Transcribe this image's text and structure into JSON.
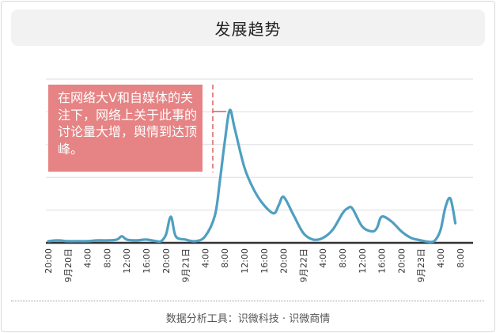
{
  "header": {
    "title": "发展趋势"
  },
  "annotation": {
    "text": "在网络大V和自媒体的关注下，网络上关于此事的讨论量大增，舆情到达顶峰。"
  },
  "footer": {
    "source": "数据分析工具：识微科技 · 识微商情"
  },
  "colors": {
    "line": "#4f9fc1",
    "annotation_bg": "#e68384",
    "title_bg": "#f2f2f2",
    "axis": "#333333",
    "grid": "#dddddd"
  },
  "chart_data": {
    "type": "line",
    "title": "发展趋势",
    "x_tick_labels": [
      "20:00",
      "9月20日",
      "4:00",
      "8:00",
      "12:00",
      "16:00",
      "20:00",
      "9月21日",
      "4:00",
      "8:00",
      "12:00",
      "16:00",
      "20:00",
      "9月22日",
      "4:00",
      "8:00",
      "12:00",
      "16:00",
      "20:00",
      "9月23日",
      "4:00",
      "8:00"
    ],
    "x_hours": [
      0,
      4,
      8,
      12,
      16,
      20,
      24,
      28,
      32,
      36,
      40,
      44,
      48,
      52,
      56,
      60,
      64,
      68,
      72,
      76,
      80,
      84
    ],
    "ylim": [
      0,
      100
    ],
    "grid": true,
    "series": [
      {
        "x": [
          0,
          2,
          4,
          6,
          8,
          10,
          12,
          14,
          15,
          16,
          18,
          20,
          22,
          23,
          24,
          25,
          26,
          28,
          30,
          32,
          34,
          35,
          36,
          37,
          38,
          40,
          42,
          44,
          46,
          47,
          48,
          50,
          52,
          54,
          56,
          58,
          60,
          61,
          62,
          64,
          66,
          67,
          68,
          70,
          72,
          74,
          76,
          78,
          79,
          80,
          81,
          82,
          83
        ],
        "y": [
          1,
          1.5,
          1,
          1,
          1,
          1.5,
          1.5,
          2,
          4,
          2,
          1.5,
          2,
          1,
          1,
          5,
          16,
          4,
          2,
          1,
          4,
          17,
          38,
          62,
          81,
          70,
          46,
          32,
          23,
          18,
          23,
          28,
          17,
          6,
          2,
          3,
          8,
          18,
          21,
          21,
          10,
          7,
          9,
          16,
          13,
          7,
          3,
          1.5,
          0.5,
          2,
          8,
          22,
          27,
          12
        ]
      }
    ]
  }
}
